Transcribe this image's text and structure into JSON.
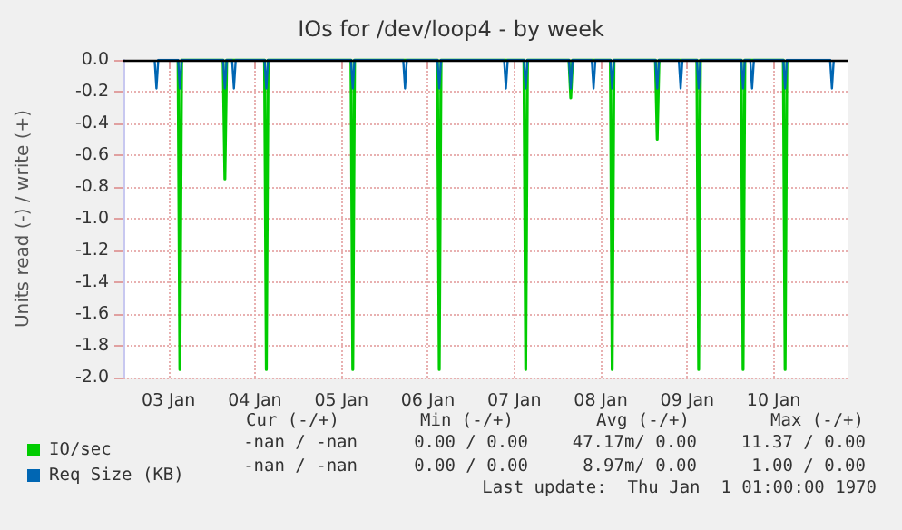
{
  "chart_data": {
    "type": "line",
    "title": "IOs for /dev/loop4 - by week",
    "ylabel": "Units read (-) / write (+)",
    "xlim": [
      "1970-01-02T23:30",
      "1970-01-11T08:30"
    ],
    "xticks": [
      {
        "value": "1970-01-03T12:00",
        "label": "03 Jan"
      },
      {
        "value": "1970-01-04T12:00",
        "label": "04 Jan"
      },
      {
        "value": "1970-01-05T12:00",
        "label": "05 Jan"
      },
      {
        "value": "1970-01-06T12:00",
        "label": "06 Jan"
      },
      {
        "value": "1970-01-07T12:00",
        "label": "07 Jan"
      },
      {
        "value": "1970-01-08T12:00",
        "label": "08 Jan"
      },
      {
        "value": "1970-01-09T12:00",
        "label": "09 Jan"
      },
      {
        "value": "1970-01-10T12:00",
        "label": "10 Jan"
      }
    ],
    "ylim": [
      -2,
      0
    ],
    "yticks": [
      {
        "value": 0,
        "label": "0.0"
      },
      {
        "value": -0.2,
        "label": "-0.2"
      },
      {
        "value": -0.4,
        "label": "-0.4"
      },
      {
        "value": -0.6,
        "label": "-0.6"
      },
      {
        "value": -0.8,
        "label": "-0.8"
      },
      {
        "value": -1,
        "label": "-1.0"
      },
      {
        "value": -1.2,
        "label": "-1.2"
      },
      {
        "value": -1.4,
        "label": "-1.4"
      },
      {
        "value": -1.6,
        "label": "-1.6"
      },
      {
        "value": -1.8,
        "label": "-1.8"
      },
      {
        "value": -2,
        "label": "-2.0"
      }
    ],
    "grid": true,
    "legend": "bottom left",
    "marker": "none",
    "line_style": "solid",
    "ref_lines": [
      {
        "axis": "y",
        "value": 0,
        "color": "#000000"
      }
    ],
    "annotations": [
      "Cur (-/+)",
      "Min (-/+)",
      "Avg (-/+)",
      "Max (-/+)",
      "-nan / -nan",
      "0.00 / 0.00",
      "47.17m/ 0.00",
      "11.37 / 0.00",
      "-nan / -nan",
      "0.00 / 0.00",
      "8.97m/ 0.00",
      "1.00 / 0.00",
      "Last update:  Thu Jan  1 01:00:00 1970"
    ],
    "series": [
      {
        "name": "IO/sec",
        "color": "#00cc00",
        "x": [
          "1970-01-03T14:40",
          "1970-01-03T15:10",
          "1970-01-03T15:40",
          "1970-01-04T03:10",
          "1970-01-04T03:40",
          "1970-01-04T04:10",
          "1970-01-04T14:40",
          "1970-01-04T15:10",
          "1970-01-04T15:40",
          "1970-01-05T14:40",
          "1970-01-05T15:10",
          "1970-01-05T15:40",
          "1970-01-06T14:40",
          "1970-01-06T15:10",
          "1970-01-06T15:40",
          "1970-01-07T14:40",
          "1970-01-07T15:10",
          "1970-01-07T15:40",
          "1970-01-08T03:10",
          "1970-01-08T03:40",
          "1970-01-08T04:10",
          "1970-01-08T14:40",
          "1970-01-08T15:10",
          "1970-01-08T15:40",
          "1970-01-09T03:10",
          "1970-01-09T03:40",
          "1970-01-09T04:10",
          "1970-01-09T14:40",
          "1970-01-09T15:10",
          "1970-01-09T15:40",
          "1970-01-10T03:00",
          "1970-01-10T03:30",
          "1970-01-10T04:00",
          "1970-01-10T14:40",
          "1970-01-10T15:10",
          "1970-01-10T15:40"
        ],
        "values": [
          0,
          -1.95,
          0,
          0,
          -0.75,
          0,
          0,
          -1.95,
          0,
          0,
          -1.95,
          0,
          0,
          -1.95,
          0,
          0,
          -1.95,
          0,
          0,
          -0.24,
          0,
          0,
          -1.95,
          0,
          0,
          -0.5,
          0,
          0,
          -1.95,
          0,
          0,
          -1.95,
          0,
          0,
          -1.95,
          0
        ]
      },
      {
        "name": "Req Size (KB)",
        "color": "#0066b3",
        "x": [
          "1970-01-03T08:10",
          "1970-01-03T08:40",
          "1970-01-03T09:10",
          "1970-01-03T14:40",
          "1970-01-03T15:10",
          "1970-01-03T15:40",
          "1970-01-04T03:10",
          "1970-01-04T03:40",
          "1970-01-04T04:10",
          "1970-01-04T05:40",
          "1970-01-04T06:10",
          "1970-01-04T06:40",
          "1970-01-04T14:40",
          "1970-01-04T15:10",
          "1970-01-04T15:40",
          "1970-01-05T14:40",
          "1970-01-05T15:10",
          "1970-01-05T15:40",
          "1970-01-06T05:10",
          "1970-01-06T05:40",
          "1970-01-06T06:10",
          "1970-01-06T14:40",
          "1970-01-06T15:10",
          "1970-01-06T15:40",
          "1970-01-07T09:10",
          "1970-01-07T09:40",
          "1970-01-07T10:10",
          "1970-01-07T14:40",
          "1970-01-07T15:10",
          "1970-01-07T15:40",
          "1970-01-08T03:10",
          "1970-01-08T03:40",
          "1970-01-08T04:10",
          "1970-01-08T09:30",
          "1970-01-08T10:00",
          "1970-01-08T10:30",
          "1970-01-08T14:40",
          "1970-01-08T15:10",
          "1970-01-08T15:40",
          "1970-01-09T03:10",
          "1970-01-09T03:40",
          "1970-01-09T04:10",
          "1970-01-09T09:40",
          "1970-01-09T10:10",
          "1970-01-09T10:40",
          "1970-01-09T14:40",
          "1970-01-09T15:10",
          "1970-01-09T15:40",
          "1970-01-10T03:00",
          "1970-01-10T03:30",
          "1970-01-10T04:00",
          "1970-01-10T05:30",
          "1970-01-10T06:00",
          "1970-01-10T06:30",
          "1970-01-10T14:40",
          "1970-01-10T15:10",
          "1970-01-10T15:40",
          "1970-01-11T03:40",
          "1970-01-11T04:10",
          "1970-01-11T04:40"
        ],
        "values": [
          0,
          -0.18,
          0,
          0,
          -0.18,
          0,
          0,
          -0.18,
          0,
          0,
          -0.18,
          0,
          0,
          -0.18,
          0,
          0,
          -0.18,
          0,
          0,
          -0.18,
          0,
          0,
          -0.18,
          0,
          0,
          -0.18,
          0,
          0,
          -0.18,
          0,
          0,
          -0.18,
          0,
          0,
          -0.18,
          0,
          0,
          -0.18,
          0,
          0,
          -0.18,
          0,
          0,
          -0.18,
          0,
          0,
          -0.18,
          0,
          0,
          -0.18,
          0,
          0,
          -0.18,
          0,
          0,
          -0.18,
          0,
          0,
          -0.18,
          0
        ]
      }
    ]
  }
}
